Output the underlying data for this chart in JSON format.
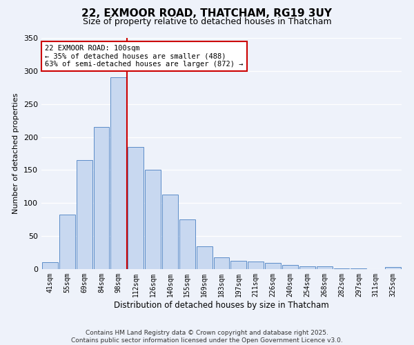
{
  "title": "22, EXMOOR ROAD, THATCHAM, RG19 3UY",
  "subtitle": "Size of property relative to detached houses in Thatcham",
  "xlabel": "Distribution of detached houses by size in Thatcham",
  "ylabel": "Number of detached properties",
  "bar_labels": [
    "41sqm",
    "55sqm",
    "69sqm",
    "84sqm",
    "98sqm",
    "112sqm",
    "126sqm",
    "140sqm",
    "155sqm",
    "169sqm",
    "183sqm",
    "197sqm",
    "211sqm",
    "226sqm",
    "240sqm",
    "254sqm",
    "268sqm",
    "282sqm",
    "297sqm",
    "311sqm",
    "325sqm"
  ],
  "bar_values": [
    10,
    83,
    165,
    215,
    290,
    185,
    150,
    113,
    75,
    35,
    18,
    13,
    11,
    9,
    6,
    4,
    4,
    1,
    1,
    0,
    3
  ],
  "bar_color": "#c8d8f0",
  "bar_edge_color": "#5b8cc8",
  "vline_color": "#cc0000",
  "vline_x": 4.5,
  "annotation_text": "22 EXMOOR ROAD: 100sqm\n← 35% of detached houses are smaller (488)\n63% of semi-detached houses are larger (872) →",
  "annotation_box_color": "#ffffff",
  "annotation_box_edge_color": "#cc0000",
  "ylim": [
    0,
    350
  ],
  "yticks": [
    0,
    50,
    100,
    150,
    200,
    250,
    300,
    350
  ],
  "background_color": "#eef2fa",
  "title_fontsize": 11,
  "subtitle_fontsize": 9,
  "xlabel_fontsize": 8.5,
  "ylabel_fontsize": 8,
  "annotation_fontsize": 7.5,
  "tick_fontsize": 7,
  "ytick_fontsize": 8,
  "footer_text": "Contains HM Land Registry data © Crown copyright and database right 2025.\nContains public sector information licensed under the Open Government Licence v3.0.",
  "footer_fontsize": 6.5
}
